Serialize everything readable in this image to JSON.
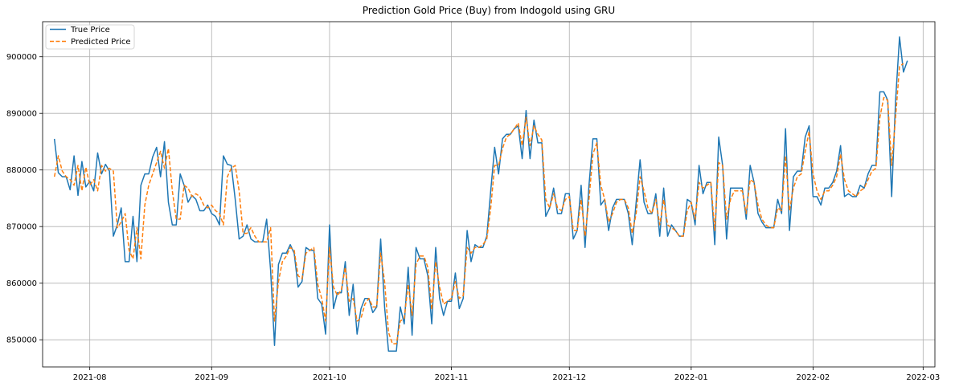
{
  "chart_data": {
    "type": "line",
    "title": "Prediction Gold Price (Buy) from Indogold using GRU",
    "xlabel": "",
    "ylabel": "",
    "grid": true,
    "legend": "upper-left",
    "x_ticks": [
      "2021-08",
      "2021-09",
      "2021-10",
      "2021-11",
      "2021-12",
      "2022-01",
      "2022-02",
      "2022-03"
    ],
    "y_ticks": [
      850000,
      860000,
      870000,
      880000,
      890000,
      900000
    ],
    "x_range": [
      "2021-07-20",
      "2022-03-04"
    ],
    "y_range": [
      845200,
      906200
    ],
    "series": [
      {
        "name": "True Price",
        "color": "#1f77b4",
        "style": "solid",
        "start_date": "2021-07-23",
        "values": [
          885500,
          879500,
          878800,
          878800,
          876500,
          882500,
          875500,
          881500,
          877000,
          878000,
          876300,
          883000,
          879300,
          881000,
          879800,
          868300,
          870300,
          873300,
          863800,
          863800,
          871800,
          863800,
          877300,
          879300,
          879300,
          882300,
          884000,
          878800,
          885000,
          874300,
          870300,
          870300,
          879300,
          877300,
          874300,
          875500,
          874800,
          872800,
          872800,
          873800,
          872300,
          871800,
          870300,
          882500,
          881000,
          880800,
          874800,
          867800,
          868300,
          870300,
          867800,
          867300,
          867300,
          867300,
          871300,
          862300,
          849000,
          863300,
          865300,
          865300,
          866800,
          865300,
          859300,
          860300,
          866300,
          865800,
          865800,
          857300,
          856300,
          851000,
          870300,
          855500,
          858300,
          858300,
          863800,
          854300,
          859800,
          851000,
          855500,
          857300,
          857300,
          854800,
          855800,
          867800,
          855800,
          848000,
          848000,
          848000,
          855800,
          852800,
          862800,
          850800,
          866300,
          864300,
          864300,
          861300,
          852800,
          866300,
          857300,
          854300,
          856800,
          856800,
          861800,
          855500,
          857300,
          869300,
          863800,
          866800,
          866300,
          866300,
          868300,
          876300,
          884000,
          879300,
          885500,
          886300,
          886300,
          887300,
          887800,
          882000,
          890500,
          882000,
          888800,
          884800,
          884800,
          871800,
          873300,
          876800,
          872300,
          872300,
          875800,
          875800,
          867800,
          869300,
          877300,
          866300,
          877300,
          885500,
          885500,
          873800,
          874800,
          869300,
          873300,
          874800,
          874800,
          874800,
          872300,
          866800,
          874300,
          881800,
          874300,
          872300,
          872300,
          875800,
          868300,
          876800,
          868300,
          870300,
          869300,
          868300,
          868300,
          874800,
          874300,
          870300,
          880800,
          875800,
          877800,
          877800,
          866800,
          885800,
          880800,
          867800,
          876800,
          876800,
          876800,
          876800,
          871300,
          880800,
          877800,
          872300,
          870800,
          869800,
          869800,
          869800,
          874800,
          872300,
          887300,
          869300,
          878800,
          879800,
          879800,
          885800,
          887800,
          875300,
          875300,
          873800,
          876800,
          876800,
          877800,
          879800,
          884300,
          875300,
          875800,
          875300,
          875300,
          877300,
          876800,
          879300,
          880800,
          880800,
          893800,
          893800,
          892300,
          875300,
          892300,
          903500,
          897300,
          899300
        ]
      },
      {
        "name": "Predicted Price",
        "color": "#ff7f0e",
        "style": "dashed",
        "start_date": "2021-07-23",
        "values": [
          878800,
          882500,
          879800,
          878800,
          878300,
          877300,
          880800,
          876300,
          880500,
          877300,
          878300,
          876300,
          880800,
          879800,
          880300,
          879800,
          869800,
          870800,
          872300,
          865800,
          864300,
          869800,
          864300,
          873800,
          877300,
          879300,
          881300,
          883300,
          880300,
          883800,
          876300,
          871300,
          871300,
          877300,
          876800,
          875300,
          875800,
          875300,
          873800,
          873300,
          873800,
          872800,
          872300,
          870300,
          878800,
          880300,
          880800,
          876300,
          868800,
          868800,
          869800,
          868300,
          867300,
          867300,
          867300,
          869800,
          853300,
          860300,
          863800,
          864800,
          866300,
          865800,
          861300,
          860800,
          865300,
          865800,
          866300,
          859800,
          857300,
          853300,
          866300,
          859300,
          857800,
          858800,
          862800,
          856800,
          857300,
          853300,
          853800,
          856300,
          857300,
          855800,
          855800,
          865300,
          860300,
          851300,
          849300,
          849300,
          853300,
          853800,
          859800,
          854300,
          863300,
          864800,
          864800,
          862800,
          855300,
          863800,
          859300,
          856300,
          856800,
          857300,
          860300,
          857300,
          857800,
          866300,
          865300,
          866300,
          866300,
          866800,
          867800,
          873300,
          880800,
          880800,
          883800,
          885800,
          886300,
          887300,
          888300,
          884300,
          889300,
          884300,
          887800,
          886300,
          885300,
          874800,
          873300,
          875800,
          873300,
          872800,
          874800,
          875300,
          869300,
          869300,
          874800,
          868300,
          874800,
          882800,
          884800,
          877300,
          874800,
          870800,
          872300,
          874300,
          874800,
          874800,
          873300,
          868800,
          872300,
          878800,
          876300,
          873300,
          872300,
          874800,
          870300,
          874800,
          870300,
          869800,
          869300,
          868300,
          868300,
          872800,
          874300,
          871300,
          877800,
          876800,
          877300,
          877800,
          869300,
          881300,
          880800,
          871300,
          874800,
          876300,
          876300,
          876300,
          872300,
          878300,
          877800,
          873800,
          871300,
          870300,
          869800,
          869800,
          873300,
          872800,
          882500,
          872800,
          876800,
          878800,
          879300,
          883300,
          886800,
          879300,
          876300,
          874800,
          876300,
          876300,
          877300,
          878800,
          882800,
          878300,
          876300,
          875800,
          875300,
          876300,
          876800,
          878300,
          879800,
          880300,
          889300,
          892800,
          892300,
          880800,
          889300,
          898300,
          898800
        ]
      }
    ]
  }
}
